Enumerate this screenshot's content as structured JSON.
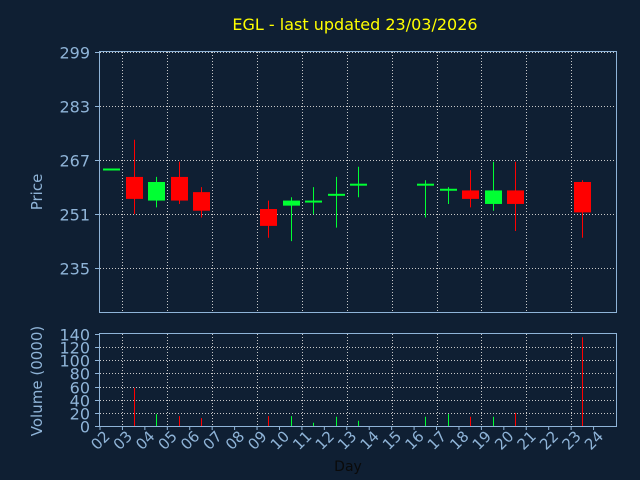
{
  "chart_data": {
    "type": "candlestick",
    "title": "EGL - last updated 23/03/2026",
    "xlabel": "Day",
    "ylabel_price": "Price",
    "ylabel_volume": "Volume (0000)",
    "days": [
      "02",
      "03",
      "04",
      "05",
      "06",
      "07",
      "08",
      "09",
      "10",
      "11",
      "12",
      "13",
      "14",
      "15",
      "16",
      "17",
      "18",
      "19",
      "20",
      "21",
      "22",
      "23",
      "24"
    ],
    "price_ticks": [
      235,
      251,
      267,
      283,
      299
    ],
    "price_ylim": [
      222,
      299
    ],
    "volume_ticks": [
      0,
      20,
      40,
      60,
      80,
      100,
      120,
      140
    ],
    "volume_ylim": [
      0,
      140
    ],
    "grid": true,
    "colors": {
      "background": "#0f1f33",
      "title": "#ffff00",
      "axis_text": "#8fb4d8",
      "grid": "#c8c8c8",
      "up": "#00ff33",
      "down": "#ff0000"
    },
    "candles": [
      {
        "day": "02",
        "open": 264.5,
        "high": 264.5,
        "low": 264.5,
        "close": 264.5,
        "volume": 0
      },
      {
        "day": "03",
        "open": 262,
        "high": 273,
        "low": 251,
        "close": 255.5,
        "volume": 58
      },
      {
        "day": "04",
        "open": 255,
        "high": 262,
        "low": 253,
        "close": 260.5,
        "volume": 18
      },
      {
        "day": "05",
        "open": 262,
        "high": 266.5,
        "low": 254,
        "close": 255,
        "volume": 15
      },
      {
        "day": "06",
        "open": 257.5,
        "high": 259,
        "low": 250,
        "close": 252,
        "volume": 12
      },
      {
        "day": "09",
        "open": 252.5,
        "high": 255,
        "low": 244,
        "close": 247.5,
        "volume": 15
      },
      {
        "day": "10",
        "open": 253.5,
        "high": 256,
        "low": 243,
        "close": 255,
        "volume": 15
      },
      {
        "day": "11",
        "open": 255,
        "high": 259,
        "low": 251,
        "close": 255,
        "volume": 5
      },
      {
        "day": "12",
        "open": 257,
        "high": 262,
        "low": 247,
        "close": 257,
        "volume": 14
      },
      {
        "day": "13",
        "open": 260,
        "high": 265,
        "low": 256,
        "close": 260,
        "volume": 8
      },
      {
        "day": "16",
        "open": 260,
        "high": 261,
        "low": 250,
        "close": 260,
        "volume": 14
      },
      {
        "day": "17",
        "open": 258.5,
        "high": 259,
        "low": 254,
        "close": 258.5,
        "volume": 18
      },
      {
        "day": "18",
        "open": 258,
        "high": 264,
        "low": 253,
        "close": 255.5,
        "volume": 14
      },
      {
        "day": "19",
        "open": 254,
        "high": 266.5,
        "low": 252,
        "close": 258,
        "volume": 14
      },
      {
        "day": "20",
        "open": 258,
        "high": 266.5,
        "low": 246,
        "close": 254,
        "volume": 20
      },
      {
        "day": "23",
        "open": 260.5,
        "high": 261,
        "low": 244,
        "close": 251.5,
        "volume": 135
      }
    ]
  }
}
